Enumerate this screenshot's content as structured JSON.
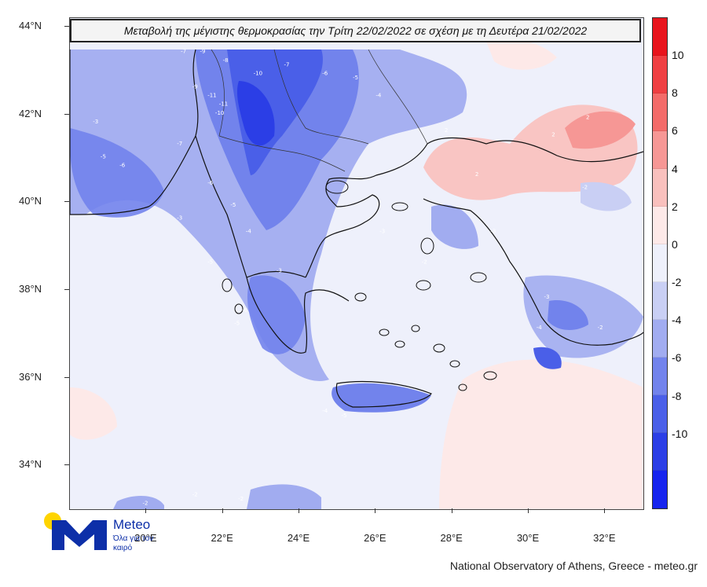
{
  "title": "Μεταβολή της μέγιστης θερμοκρασίας την Τρίτη 22/02/2022 σε σχέση με τη Δευτέρα 21/02/2022",
  "map": {
    "lat_labels": [
      "44°N",
      "42°N",
      "40°N",
      "38°N",
      "36°N",
      "34°N"
    ],
    "lon_labels": [
      "20°E",
      "22°E",
      "24°E",
      "26°E",
      "28°E",
      "30°E",
      "32°E"
    ],
    "extent_degrees": {
      "lon_min": 18,
      "lon_max": 33,
      "lat_min": 33,
      "lat_max": 44.2
    },
    "field_samples": [
      {
        "label": "-9",
        "lon": 21.4,
        "lat": 43.4
      },
      {
        "label": "-7",
        "lon": 20.9,
        "lat": 43.4
      },
      {
        "label": "-8",
        "lon": 22.0,
        "lat": 43.2
      },
      {
        "label": "-10",
        "lon": 22.8,
        "lat": 42.9
      },
      {
        "label": "-11",
        "lon": 21.6,
        "lat": 42.4
      },
      {
        "label": "-11",
        "lon": 21.9,
        "lat": 42.2
      },
      {
        "label": "-10",
        "lon": 21.8,
        "lat": 42.0
      },
      {
        "label": "-9",
        "lon": 21.2,
        "lat": 42.6
      },
      {
        "label": "-7",
        "lon": 23.6,
        "lat": 43.1
      },
      {
        "label": "-6",
        "lon": 24.6,
        "lat": 42.9
      },
      {
        "label": "-5",
        "lon": 25.4,
        "lat": 42.8
      },
      {
        "label": "-4",
        "lon": 26.0,
        "lat": 42.4
      },
      {
        "label": "-3",
        "lon": 18.6,
        "lat": 41.8
      },
      {
        "label": "-5",
        "lon": 18.8,
        "lat": 41.0
      },
      {
        "label": "-6",
        "lon": 19.3,
        "lat": 40.8
      },
      {
        "label": "-7",
        "lon": 20.8,
        "lat": 41.3
      },
      {
        "label": "-6",
        "lon": 21.6,
        "lat": 40.4
      },
      {
        "label": "-5",
        "lon": 22.2,
        "lat": 39.9
      },
      {
        "label": "-4",
        "lon": 22.6,
        "lat": 39.3
      },
      {
        "label": "-3",
        "lon": 20.8,
        "lat": 39.6
      },
      {
        "label": "-5",
        "lon": 21.6,
        "lat": 38.6
      },
      {
        "label": "-6",
        "lon": 22.5,
        "lat": 37.5
      },
      {
        "label": "-5",
        "lon": 22.3,
        "lat": 37.2
      },
      {
        "label": "-3",
        "lon": 23.4,
        "lat": 38.4
      },
      {
        "label": "-4",
        "lon": 24.6,
        "lat": 35.2
      },
      {
        "label": "-5",
        "lon": 25.1,
        "lat": 35.1
      },
      {
        "label": "-3",
        "lon": 26.1,
        "lat": 39.3
      },
      {
        "label": "-2",
        "lon": 27.2,
        "lat": 38.6
      },
      {
        "label": "2",
        "lon": 27.8,
        "lat": 41.6
      },
      {
        "label": "2",
        "lon": 28.6,
        "lat": 40.6
      },
      {
        "label": "2",
        "lon": 30.6,
        "lat": 41.5
      },
      {
        "label": "2",
        "lon": 31.5,
        "lat": 41.9
      },
      {
        "label": "-3",
        "lon": 30.4,
        "lat": 37.8
      },
      {
        "label": "-4",
        "lon": 30.2,
        "lat": 37.1
      },
      {
        "label": "-2",
        "lon": 31.8,
        "lat": 37.1
      },
      {
        "label": "-3",
        "lon": 29.0,
        "lat": 39.3
      },
      {
        "label": "-2",
        "lon": 31.4,
        "lat": 40.3
      },
      {
        "label": "-2",
        "lon": 21.2,
        "lat": 33.3
      },
      {
        "label": "-2",
        "lon": 22.4,
        "lat": 33.2
      },
      {
        "label": "-2",
        "lon": 19.9,
        "lat": 33.1
      }
    ]
  },
  "colorbar": {
    "labels": [
      "10",
      "8",
      "6",
      "4",
      "2",
      "0",
      "-2",
      "-4",
      "-6",
      "-8",
      "-10"
    ],
    "colors": [
      "#e8141c",
      "#ef3f42",
      "#f36b69",
      "#f69795",
      "#f9c0bd",
      "#fde9e8",
      "#eef0fb",
      "#c9cff4",
      "#a1acf0",
      "#7283ec",
      "#4a5fe8",
      "#2b3ee6",
      "#1624ee"
    ]
  },
  "logo": {
    "name": "Meteo",
    "slogan": "Όλα για τον καιρό"
  },
  "footer": "National Observatory of Athens, Greece - meteo.gr"
}
